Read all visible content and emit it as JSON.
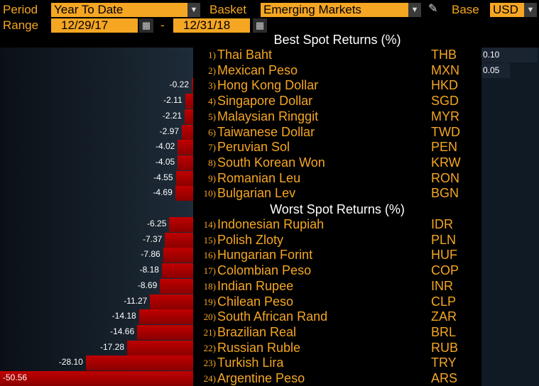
{
  "controls": {
    "period_label": "Period",
    "period_value": "Year To Date",
    "basket_label": "Basket",
    "basket_value": "Emerging Markets",
    "base_label": "Base",
    "base_value": "USD",
    "range_label": "Range",
    "range_start": "12/29/17",
    "range_separator": "-",
    "range_end": "12/31/18"
  },
  "best_title": "Best Spot Returns (%)",
  "worst_title": "Worst Spot Returns (%)",
  "colors": {
    "accent": "#f5a623",
    "negative_bar": "#b00000",
    "panel_dark": "#0f1a24",
    "positive_bar": "#1a2330"
  },
  "chart_data": {
    "type": "bar",
    "title": "",
    "best": [
      {
        "rank": "1)",
        "name": "Thai Baht",
        "code": "THB",
        "value": 0.1,
        "label": "0.10"
      },
      {
        "rank": "2)",
        "name": "Mexican Peso",
        "code": "MXN",
        "value": 0.05,
        "label": "0.05"
      },
      {
        "rank": "3)",
        "name": "Hong Kong Dollar",
        "code": "HKD",
        "value": -0.22,
        "label": "-0.22"
      },
      {
        "rank": "4)",
        "name": "Singapore Dollar",
        "code": "SGD",
        "value": -2.11,
        "label": "-2.11"
      },
      {
        "rank": "5)",
        "name": "Malaysian Ringgit",
        "code": "MYR",
        "value": -2.21,
        "label": "-2.21"
      },
      {
        "rank": "6)",
        "name": "Taiwanese Dollar",
        "code": "TWD",
        "value": -2.97,
        "label": "-2.97"
      },
      {
        "rank": "7)",
        "name": "Peruvian Sol",
        "code": "PEN",
        "value": -4.02,
        "label": "-4.02"
      },
      {
        "rank": "8)",
        "name": "South Korean Won",
        "code": "KRW",
        "value": -4.05,
        "label": "-4.05"
      },
      {
        "rank": "9)",
        "name": "Romanian Leu",
        "code": "RON",
        "value": -4.55,
        "label": "-4.55"
      },
      {
        "rank": "10)",
        "name": "Bulgarian Lev",
        "code": "BGN",
        "value": -4.69,
        "label": "-4.69"
      }
    ],
    "worst": [
      {
        "rank": "14)",
        "name": "Indonesian Rupiah",
        "code": "IDR",
        "value": -6.25,
        "label": "-6.25"
      },
      {
        "rank": "15)",
        "name": "Polish Zloty",
        "code": "PLN",
        "value": -7.37,
        "label": "-7.37"
      },
      {
        "rank": "16)",
        "name": "Hungarian Forint",
        "code": "HUF",
        "value": -7.86,
        "label": "-7.86"
      },
      {
        "rank": "17)",
        "name": "Colombian Peso",
        "code": "COP",
        "value": -8.18,
        "label": "-8.18"
      },
      {
        "rank": "18)",
        "name": "Indian Rupee",
        "code": "INR",
        "value": -8.69,
        "label": "-8.69"
      },
      {
        "rank": "19)",
        "name": "Chilean Peso",
        "code": "CLP",
        "value": -11.27,
        "label": "-11.27"
      },
      {
        "rank": "20)",
        "name": "South African Rand",
        "code": "ZAR",
        "value": -14.18,
        "label": "-14.18"
      },
      {
        "rank": "21)",
        "name": "Brazilian Real",
        "code": "BRL",
        "value": -14.66,
        "label": "-14.66"
      },
      {
        "rank": "22)",
        "name": "Russian Ruble",
        "code": "RUB",
        "value": -17.28,
        "label": "-17.28"
      },
      {
        "rank": "23)",
        "name": "Turkish Lira",
        "code": "TRY",
        "value": -28.1,
        "label": "-28.10"
      },
      {
        "rank": "24)",
        "name": "Argentine Peso",
        "code": "ARS",
        "value": -50.56,
        "label": "-50.56"
      }
    ]
  }
}
